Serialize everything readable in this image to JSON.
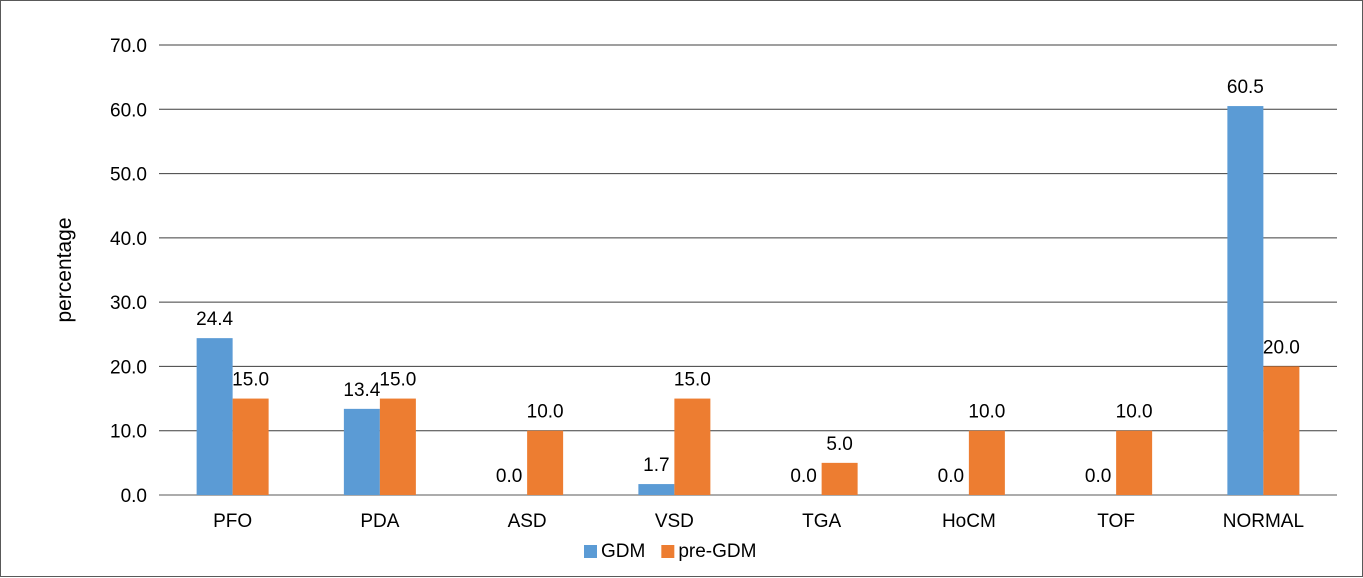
{
  "chart_data": {
    "type": "bar",
    "title": "",
    "xlabel": "",
    "ylabel": "percentage",
    "ylim": [
      0,
      70
    ],
    "yticks": [
      "0.0",
      "10.0",
      "20.0",
      "30.0",
      "40.0",
      "50.0",
      "60.0",
      "70.0"
    ],
    "ytick_values": [
      0,
      10,
      20,
      30,
      40,
      50,
      60,
      70
    ],
    "grid": true,
    "legend_position": "bottom",
    "categories": [
      "PFO",
      "PDA",
      "ASD",
      "VSD",
      "TGA",
      "HoCM",
      "TOF",
      "NORMAL"
    ],
    "series": [
      {
        "name": "GDM",
        "color": "#5B9BD5",
        "values": [
          24.4,
          13.4,
          0.0,
          1.7,
          0.0,
          0.0,
          0.0,
          60.5
        ],
        "labels": [
          "24.4",
          "13.4",
          "0.0",
          "1.7",
          "0.0",
          "0.0",
          "0.0",
          "60.5"
        ]
      },
      {
        "name": "pre-GDM",
        "color": "#ED7D31",
        "values": [
          15.0,
          15.0,
          10.0,
          15.0,
          5.0,
          10.0,
          10.0,
          20.0
        ],
        "labels": [
          "15.0",
          "15.0",
          "10.0",
          "15.0",
          "5.0",
          "10.0",
          "10.0",
          "20.0"
        ]
      }
    ]
  }
}
